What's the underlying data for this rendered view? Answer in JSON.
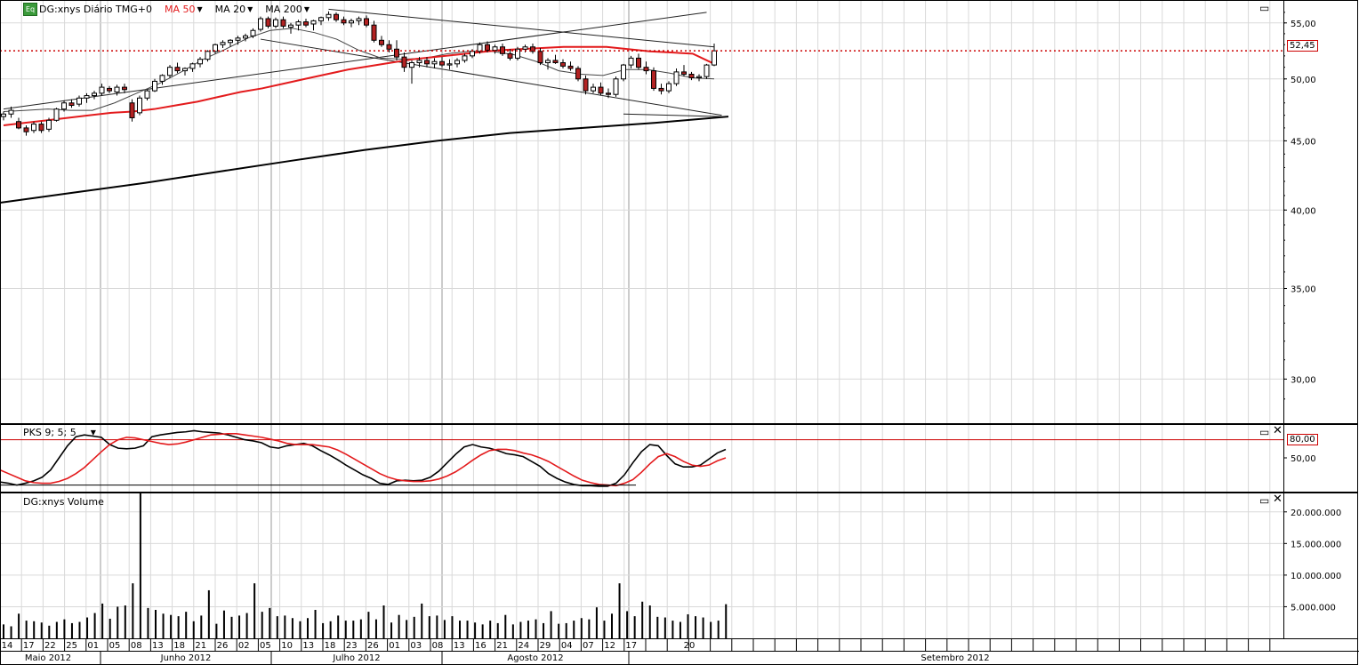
{
  "main_panel": {
    "symbol_badge": "Eq",
    "instrument_label": "DG:xnys Diário TMG+0",
    "indicators": [
      {
        "label": "MA 50",
        "color": "#e31a1c"
      },
      {
        "label": "MA 20",
        "color": "#000000"
      },
      {
        "label": "MA 200",
        "color": "#000000"
      }
    ],
    "last_price_label": "52,45",
    "last_price_color": "#cc0000"
  },
  "oscillator_panel": {
    "label": "PKS 9; 5; 5",
    "level_label": "80,00",
    "level_color": "#cc0000"
  },
  "volume_panel": {
    "label": "DG:xnys Volume"
  },
  "icons": {
    "maximize": "maximize-icon",
    "close": "close-icon",
    "dropdown": "chevron-down-icon"
  },
  "chart_data": [
    {
      "type": "candlestick",
      "title": "DG:xnys Diário TMG+0",
      "y_ticks": [
        "55,00",
        "50,00",
        "45,00",
        "40,00",
        "35,00",
        "30,00"
      ],
      "y_tick_values": [
        55,
        50,
        45,
        40,
        35,
        30
      ],
      "ylim": [
        28,
        56.5
      ],
      "y_scale": "log",
      "x_day_labels": [
        "14",
        "17",
        "22",
        "25",
        "01",
        "05",
        "08",
        "13",
        "18",
        "21",
        "26",
        "02",
        "05",
        "10",
        "13",
        "18",
        "23",
        "26",
        "01",
        "03",
        "08",
        "13",
        "16",
        "21",
        "24",
        "29",
        "04",
        "07",
        "12",
        "17",
        "20"
      ],
      "x_month_labels": [
        "Maio 2012",
        "Junho 2012",
        "Julho 2012",
        "Agosto 2012",
        "Setembro 2012"
      ],
      "grid": true,
      "last_close": 52.45,
      "ohlc": [
        [
          46.9,
          47.3,
          46.6,
          47.1
        ],
        [
          47.1,
          47.7,
          46.8,
          47.4
        ],
        [
          46.5,
          46.8,
          45.9,
          46.0
        ],
        [
          46.0,
          46.2,
          45.4,
          45.7
        ],
        [
          45.8,
          46.5,
          45.6,
          46.3
        ],
        [
          46.3,
          46.5,
          45.6,
          45.8
        ],
        [
          45.9,
          46.8,
          45.7,
          46.6
        ],
        [
          46.6,
          47.6,
          46.5,
          47.5
        ],
        [
          47.5,
          48.2,
          47.3,
          48.0
        ],
        [
          48.0,
          48.3,
          47.6,
          47.8
        ],
        [
          47.9,
          48.6,
          47.7,
          48.4
        ],
        [
          48.4,
          48.8,
          48.0,
          48.6
        ],
        [
          48.6,
          49.0,
          48.3,
          48.8
        ],
        [
          48.8,
          49.6,
          48.6,
          49.3
        ],
        [
          49.2,
          49.4,
          48.8,
          49.0
        ],
        [
          48.9,
          49.5,
          48.6,
          49.3
        ],
        [
          49.3,
          49.6,
          48.8,
          49.1
        ],
        [
          48.0,
          48.3,
          46.5,
          46.8
        ],
        [
          47.2,
          48.6,
          47.0,
          48.4
        ],
        [
          48.4,
          49.1,
          48.2,
          49.0
        ],
        [
          49.0,
          50.0,
          48.9,
          49.8
        ],
        [
          49.8,
          50.4,
          49.5,
          50.3
        ],
        [
          50.3,
          51.2,
          50.1,
          51.0
        ],
        [
          51.0,
          51.4,
          50.5,
          50.7
        ],
        [
          50.7,
          51.0,
          50.3,
          50.9
        ],
        [
          50.9,
          51.4,
          50.6,
          51.3
        ],
        [
          51.3,
          51.9,
          51.0,
          51.7
        ],
        [
          51.7,
          52.5,
          51.5,
          52.4
        ],
        [
          52.4,
          53.1,
          52.2,
          53.0
        ],
        [
          53.0,
          53.4,
          52.7,
          53.2
        ],
        [
          53.2,
          53.5,
          52.8,
          53.4
        ],
        [
          53.4,
          53.8,
          53.0,
          53.6
        ],
        [
          53.6,
          54.0,
          53.3,
          53.8
        ],
        [
          53.8,
          54.5,
          53.6,
          54.3
        ],
        [
          54.4,
          55.6,
          54.2,
          55.4
        ],
        [
          55.4,
          55.6,
          54.5,
          54.7
        ],
        [
          54.7,
          55.5,
          54.5,
          55.3
        ],
        [
          55.3,
          55.6,
          54.5,
          54.7
        ],
        [
          54.6,
          55.0,
          54.0,
          54.8
        ],
        [
          54.8,
          55.3,
          54.3,
          55.1
        ],
        [
          55.1,
          55.4,
          54.6,
          54.8
        ],
        [
          54.9,
          55.3,
          54.3,
          55.2
        ],
        [
          55.2,
          55.6,
          54.8,
          55.5
        ],
        [
          55.5,
          56.1,
          55.2,
          55.8
        ],
        [
          55.8,
          56.0,
          55.1,
          55.3
        ],
        [
          55.3,
          55.6,
          54.8,
          55.0
        ],
        [
          55.0,
          55.4,
          54.6,
          55.2
        ],
        [
          55.2,
          55.6,
          54.8,
          55.4
        ],
        [
          55.4,
          55.7,
          54.6,
          54.8
        ],
        [
          54.8,
          55.2,
          53.2,
          53.4
        ],
        [
          53.4,
          53.8,
          52.8,
          53.0
        ],
        [
          53.0,
          53.4,
          52.3,
          52.6
        ],
        [
          52.6,
          53.4,
          51.6,
          51.9
        ],
        [
          51.9,
          52.3,
          50.6,
          51.0
        ],
        [
          51.0,
          51.6,
          49.6,
          51.4
        ],
        [
          51.4,
          51.9,
          51.0,
          51.6
        ],
        [
          51.6,
          51.9,
          51.0,
          51.3
        ],
        [
          51.3,
          51.8,
          50.9,
          51.5
        ],
        [
          51.5,
          51.9,
          51.0,
          51.2
        ],
        [
          51.2,
          51.7,
          50.8,
          51.3
        ],
        [
          51.3,
          51.8,
          51.0,
          51.6
        ],
        [
          51.6,
          52.2,
          51.4,
          52.0
        ],
        [
          52.0,
          52.6,
          51.8,
          52.4
        ],
        [
          52.4,
          53.2,
          52.2,
          53.0
        ],
        [
          53.0,
          53.3,
          52.3,
          52.5
        ],
        [
          52.5,
          53.0,
          52.2,
          52.8
        ],
        [
          52.8,
          53.1,
          52.0,
          52.2
        ],
        [
          52.2,
          52.6,
          51.6,
          51.8
        ],
        [
          51.8,
          52.8,
          51.6,
          52.6
        ],
        [
          52.6,
          53.0,
          52.3,
          52.8
        ],
        [
          52.8,
          53.1,
          52.2,
          52.4
        ],
        [
          52.4,
          52.7,
          51.2,
          51.4
        ],
        [
          51.4,
          51.8,
          50.8,
          51.6
        ],
        [
          51.6,
          52.1,
          51.3,
          51.4
        ],
        [
          51.4,
          51.7,
          50.9,
          51.1
        ],
        [
          51.1,
          51.5,
          50.7,
          50.9
        ],
        [
          50.9,
          51.1,
          49.8,
          50.0
        ],
        [
          50.0,
          50.3,
          48.7,
          49.0
        ],
        [
          49.0,
          49.6,
          48.8,
          49.3
        ],
        [
          49.3,
          49.7,
          48.6,
          48.8
        ],
        [
          48.8,
          49.2,
          48.4,
          48.7
        ],
        [
          48.7,
          50.2,
          48.5,
          50.0
        ],
        [
          50.0,
          51.3,
          49.8,
          51.2
        ],
        [
          51.2,
          52.0,
          50.9,
          51.8
        ],
        [
          51.8,
          52.2,
          50.8,
          51.0
        ],
        [
          51.0,
          51.5,
          50.4,
          50.7
        ],
        [
          50.7,
          51.0,
          49.0,
          49.2
        ],
        [
          49.2,
          49.6,
          48.7,
          49.0
        ],
        [
          49.0,
          49.8,
          48.8,
          49.6
        ],
        [
          49.6,
          50.9,
          49.4,
          50.6
        ],
        [
          50.6,
          51.2,
          50.2,
          50.4
        ],
        [
          50.4,
          50.6,
          49.9,
          50.1
        ],
        [
          50.1,
          50.4,
          49.8,
          50.2
        ],
        [
          50.2,
          51.3,
          50.0,
          51.2
        ],
        [
          51.2,
          53.1,
          51.1,
          52.45
        ]
      ],
      "ma50": [
        46.2,
        46.4,
        46.6,
        46.8,
        47.0,
        47.2,
        47.3,
        47.5,
        47.8,
        48.1,
        48.5,
        48.9,
        49.2,
        49.6,
        50.0,
        50.4,
        50.8,
        51.1,
        51.4,
        51.7,
        51.9,
        52.1,
        52.3,
        52.5,
        52.6,
        52.7,
        52.8,
        52.8,
        52.8,
        52.6,
        52.4,
        52.3,
        52.2,
        51.3
      ],
      "ma20": [
        47.3,
        47.4,
        47.5,
        47.4,
        47.4,
        48.0,
        48.8,
        49.6,
        50.6,
        51.7,
        52.6,
        53.6,
        54.3,
        54.5,
        54.1,
        53.5,
        52.5,
        51.8,
        51.7,
        51.8,
        52.2,
        52.4,
        52.4,
        52.1,
        51.5,
        50.7,
        50.4,
        50.3,
        50.8,
        50.8,
        50.5,
        50.1,
        50.0
      ],
      "ma200": [
        40.5,
        41.2,
        41.9,
        42.7,
        43.5,
        44.3,
        45.0,
        45.6,
        46.0,
        46.4,
        46.9
      ],
      "trendlines": [
        {
          "from": [
            0,
            47.5
          ],
          "to": [
            93,
            56.0
          ]
        },
        {
          "from": [
            43,
            56.3
          ],
          "to": [
            94,
            52.8
          ]
        },
        {
          "from": [
            34,
            53.5
          ],
          "to": [
            95,
            47.0
          ]
        },
        {
          "from": [
            82,
            47.1
          ],
          "to": [
            95,
            46.9
          ]
        }
      ]
    },
    {
      "type": "line",
      "title": "PKS 9; 5; 5",
      "y_ticks": [
        "50,00"
      ],
      "y_tick_values": [
        50
      ],
      "reference_line": 80,
      "ylim": [
        0,
        100
      ],
      "series": [
        {
          "color": "#000000",
          "values": [
            10,
            8,
            5,
            8,
            12,
            18,
            30,
            50,
            70,
            85,
            88,
            86,
            84,
            72,
            66,
            65,
            66,
            70,
            85,
            88,
            90,
            92,
            93,
            95,
            93,
            92,
            91,
            88,
            84,
            80,
            78,
            75,
            68,
            66,
            70,
            72,
            74,
            70,
            62,
            55,
            47,
            38,
            30,
            22,
            16,
            8,
            6,
            12,
            13,
            12,
            13,
            18,
            28,
            42,
            56,
            68,
            72,
            68,
            66,
            62,
            57,
            55,
            52,
            44,
            36,
            24,
            16,
            10,
            6,
            4,
            4,
            3,
            3,
            8,
            22,
            42,
            60,
            72,
            70,
            54,
            40,
            35,
            35,
            38,
            48,
            58,
            64
          ]
        },
        {
          "color": "#e31a1c",
          "values": [
            30,
            24,
            18,
            12,
            9,
            8,
            8,
            11,
            16,
            24,
            34,
            47,
            60,
            72,
            80,
            84,
            83,
            80,
            77,
            74,
            72,
            73,
            76,
            80,
            84,
            88,
            89,
            90,
            90,
            88,
            86,
            84,
            81,
            78,
            74,
            72,
            72,
            72,
            70,
            68,
            63,
            56,
            48,
            40,
            32,
            24,
            18,
            14,
            12,
            11,
            11,
            12,
            15,
            20,
            27,
            36,
            46,
            55,
            62,
            64,
            64,
            62,
            58,
            55,
            50,
            44,
            36,
            28,
            20,
            13,
            9,
            6,
            5,
            4,
            8,
            14,
            26,
            40,
            52,
            57,
            52,
            44,
            38,
            36,
            38,
            45,
            50
          ]
        },
        {
          "color": "#000000",
          "values": [
            5,
            5,
            5,
            5,
            5,
            5,
            5,
            5,
            5,
            5,
            5,
            5,
            5,
            5,
            5,
            5,
            5,
            5,
            5,
            5,
            5,
            5,
            5,
            5,
            5,
            5,
            5,
            5,
            5,
            5,
            5,
            5,
            5,
            5,
            5,
            5,
            5,
            5,
            5,
            5,
            5,
            5,
            5,
            5,
            5,
            5,
            5,
            5,
            5,
            5,
            5,
            5,
            5,
            5,
            5,
            5,
            5,
            5,
            5,
            5,
            5,
            5,
            5,
            5,
            5,
            5,
            5,
            5,
            5,
            5,
            5,
            5,
            5,
            5,
            5,
            5,
            5,
            5,
            5
          ]
        }
      ]
    },
    {
      "type": "bar",
      "title": "DG:xnys Volume",
      "y_ticks": [
        "20.000.000",
        "15.000.000",
        "10.000.000",
        "5.000.000"
      ],
      "y_tick_values": [
        20000000,
        15000000,
        10000000,
        5000000
      ],
      "ylim": [
        0,
        22500000
      ],
      "values": [
        2200000,
        1900000,
        3900000,
        2800000,
        2700000,
        2500000,
        2000000,
        2600000,
        3000000,
        2400000,
        2600000,
        3300000,
        4000000,
        5500000,
        3100000,
        5000000,
        5200000,
        8700000,
        23000000,
        4800000,
        4500000,
        3900000,
        3700000,
        3500000,
        4200000,
        2700000,
        3600000,
        7600000,
        2300000,
        4400000,
        3400000,
        3600000,
        4000000,
        8700000,
        4200000,
        4800000,
        3500000,
        3600000,
        3200000,
        2700000,
        3200000,
        4500000,
        2400000,
        2700000,
        3600000,
        2800000,
        2800000,
        3000000,
        4200000,
        3000000,
        5200000,
        2500000,
        3700000,
        2900000,
        3400000,
        5500000,
        3500000,
        3600000,
        2900000,
        3500000,
        2800000,
        2800000,
        2500000,
        2200000,
        2800000,
        2400000,
        3700000,
        2200000,
        2600000,
        2800000,
        3000000,
        2400000,
        4300000,
        2300000,
        2400000,
        2800000,
        3200000,
        3000000,
        4900000,
        2800000,
        3900000,
        8700000,
        4300000,
        3500000,
        5800000,
        5200000,
        3400000,
        3300000,
        2800000,
        2600000,
        3800000,
        3500000,
        3300000,
        2600000,
        2800000,
        5400000
      ]
    }
  ]
}
